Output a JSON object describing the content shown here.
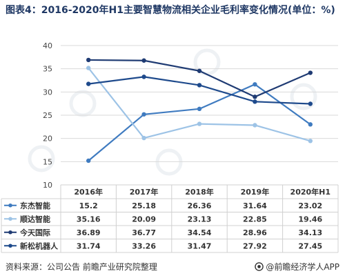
{
  "title": "图表4：2016-2020年H1主要智慧物流相关企业毛利率变化情况(单位：%)",
  "source": "资料来源：公司公告 前瞻产业研究院整理",
  "brand": "@前瞻经济学人APP",
  "chart_data": {
    "type": "line",
    "title": "图表4：2016-2020年H1主要智慧物流相关企业毛利率变化情况(单位：%)",
    "categories": [
      "2016年",
      "2017年",
      "2018年",
      "2019年",
      "2020年H1"
    ],
    "yticks": [
      "10",
      "15",
      "20",
      "25",
      "30",
      "35",
      "40"
    ],
    "ylim": [
      10,
      40
    ],
    "grid": true,
    "legend": "data-table",
    "series": [
      {
        "name": "东杰智能",
        "color": "#3f7bc0",
        "values": [
          15.2,
          25.18,
          26.36,
          31.64,
          23.02
        ],
        "labels": [
          "15.2",
          "25.18",
          "26.36",
          "31.64",
          "23.02"
        ]
      },
      {
        "name": "顺达智能",
        "color": "#9dc3e6",
        "values": [
          35.16,
          20.09,
          23.13,
          22.85,
          19.46
        ],
        "labels": [
          "35.16",
          "20.09",
          "23.13",
          "22.85",
          "19.46"
        ]
      },
      {
        "name": "今天国际",
        "color": "#1f3b73",
        "values": [
          36.89,
          36.77,
          34.54,
          28.96,
          34.13
        ],
        "labels": [
          "36.89",
          "36.77",
          "34.54",
          "28.96",
          "34.13"
        ]
      },
      {
        "name": "新松机器人",
        "color": "#1e4a8c",
        "values": [
          31.74,
          33.26,
          31.47,
          27.92,
          27.45
        ],
        "labels": [
          "31.74",
          "33.26",
          "31.47",
          "27.92",
          "27.45"
        ]
      }
    ]
  }
}
